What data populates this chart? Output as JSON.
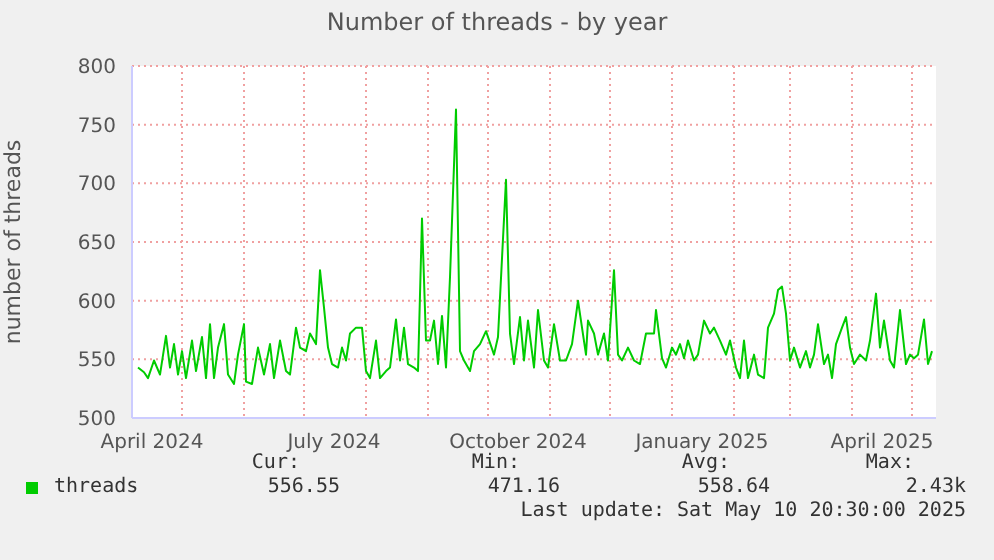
{
  "chart_data": {
    "type": "line",
    "title": "Number of threads - by year",
    "ylabel": "number of threads",
    "x": [
      "2024-04-09",
      "2024-04-12",
      "2024-04-14",
      "2024-04-17",
      "2024-04-20",
      "2024-04-23",
      "2024-04-25",
      "2024-04-27",
      "2024-04-29",
      "2024-05-01",
      "2024-05-03",
      "2024-05-06",
      "2024-05-08",
      "2024-05-11",
      "2024-05-13",
      "2024-05-15",
      "2024-05-17",
      "2024-05-19",
      "2024-05-22",
      "2024-05-24",
      "2024-05-27",
      "2024-05-29",
      "2024-06-01",
      "2024-06-02",
      "2024-06-05",
      "2024-06-08",
      "2024-06-11",
      "2024-06-14",
      "2024-06-16",
      "2024-06-19",
      "2024-06-22",
      "2024-06-24",
      "2024-06-27",
      "2024-06-29",
      "2024-07-02",
      "2024-07-04",
      "2024-07-07",
      "2024-07-09",
      "2024-07-11",
      "2024-07-13",
      "2024-07-15",
      "2024-07-18",
      "2024-07-20",
      "2024-07-22",
      "2024-07-24",
      "2024-07-27",
      "2024-07-30",
      "2024-08-01",
      "2024-08-03",
      "2024-08-06",
      "2024-08-08",
      "2024-08-11",
      "2024-08-13",
      "2024-08-16",
      "2024-08-18",
      "2024-08-20",
      "2024-08-22",
      "2024-08-25",
      "2024-08-27",
      "2024-08-29",
      "2024-08-31",
      "2024-09-02",
      "2024-09-04",
      "2024-09-06",
      "2024-09-08",
      "2024-09-10",
      "2024-09-12",
      "2024-09-15",
      "2024-09-17",
      "2024-09-19",
      "2024-09-22",
      "2024-09-24",
      "2024-09-27",
      "2024-09-30",
      "2024-10-04",
      "2024-10-06",
      "2024-10-10",
      "2024-10-12",
      "2024-10-14",
      "2024-10-17",
      "2024-10-19",
      "2024-10-21",
      "2024-10-24",
      "2024-10-26",
      "2024-10-29",
      "2024-10-31",
      "2024-11-03",
      "2024-11-06",
      "2024-11-09",
      "2024-11-12",
      "2024-11-15",
      "2024-11-17",
      "2024-11-19",
      "2024-11-20",
      "2024-11-23",
      "2024-11-25",
      "2024-11-28",
      "2024-11-30",
      "2024-12-03",
      "2024-12-05",
      "2024-12-07",
      "2024-12-10",
      "2024-12-13",
      "2024-12-16",
      "2024-12-19",
      "2024-12-21",
      "2024-12-23",
      "2024-12-24",
      "2024-12-27",
      "2024-12-29",
      "2025-01-01",
      "2025-01-03",
      "2025-01-05",
      "2025-01-07",
      "2025-01-09",
      "2025-01-12",
      "2025-01-14",
      "2025-01-17",
      "2025-01-20",
      "2025-01-22",
      "2025-01-25",
      "2025-01-28",
      "2025-01-30",
      "2025-02-02",
      "2025-02-04",
      "2025-02-06",
      "2025-02-08",
      "2025-02-11",
      "2025-02-13",
      "2025-02-16",
      "2025-02-18",
      "2025-02-21",
      "2025-02-23",
      "2025-02-25",
      "2025-02-27",
      "2025-03-01",
      "2025-03-03",
      "2025-03-06",
      "2025-03-09",
      "2025-03-11",
      "2025-03-13",
      "2025-03-15",
      "2025-03-18",
      "2025-03-20",
      "2025-03-22",
      "2025-03-24",
      "2025-03-27",
      "2025-03-29",
      "2025-03-31",
      "2025-04-02",
      "2025-04-05",
      "2025-04-08",
      "2025-04-10",
      "2025-04-13",
      "2025-04-15",
      "2025-04-17",
      "2025-04-20",
      "2025-04-22",
      "2025-04-25",
      "2025-04-28",
      "2025-04-30",
      "2025-05-02",
      "2025-05-04",
      "2025-05-07",
      "2025-05-09",
      "2025-05-11"
    ],
    "series": [
      {
        "name": "threads",
        "color": "#00cc00",
        "values": [
          543,
          539,
          534,
          549,
          537,
          570,
          543,
          563,
          537,
          557,
          534,
          566,
          540,
          569,
          534,
          580,
          534,
          560,
          580,
          537,
          529,
          554,
          580,
          531,
          529,
          560,
          537,
          563,
          534,
          566,
          540,
          537,
          577,
          560,
          557,
          572,
          563,
          626,
          594,
          560,
          546,
          543,
          560,
          549,
          572,
          577,
          577,
          540,
          534,
          566,
          534,
          540,
          543,
          584,
          549,
          577,
          546,
          543,
          540,
          670,
          566,
          566,
          583,
          546,
          587,
          543,
          620,
          763,
          557,
          549,
          540,
          557,
          563,
          574,
          554,
          569,
          703,
          572,
          546,
          586,
          549,
          583,
          543,
          592,
          549,
          543,
          580,
          549,
          549,
          563,
          600,
          577,
          554,
          583,
          572,
          554,
          572,
          549,
          626,
          554,
          549,
          560,
          549,
          546,
          572,
          572,
          572,
          592,
          551,
          543,
          560,
          554,
          563,
          551,
          566,
          549,
          554,
          583,
          572,
          577,
          566,
          554,
          566,
          543,
          534,
          566,
          534,
          554,
          537,
          534,
          577,
          589,
          609,
          612,
          589,
          549,
          560,
          543,
          557,
          543,
          554,
          580,
          546,
          554,
          534,
          563,
          577,
          586,
          560,
          546,
          554,
          549,
          566,
          606,
          560,
          583,
          549,
          543,
          592,
          546,
          554,
          551,
          554,
          584,
          546,
          557
        ]
      }
    ],
    "xlim": [
      "2024-04-06",
      "2025-05-13"
    ],
    "xticks": [
      {
        "value": "2024-04-16",
        "label": "April 2024"
      },
      {
        "value": "2024-05-01",
        "label": null
      },
      {
        "value": "2024-06-01",
        "label": null
      },
      {
        "value": "2024-07-01",
        "label": null
      },
      {
        "value": "2024-07-16",
        "label": "July 2024"
      },
      {
        "value": "2024-08-01",
        "label": null
      },
      {
        "value": "2024-09-01",
        "label": null
      },
      {
        "value": "2024-10-01",
        "label": null
      },
      {
        "value": "2024-10-16",
        "label": "October 2024"
      },
      {
        "value": "2024-11-01",
        "label": null
      },
      {
        "value": "2024-12-01",
        "label": null
      },
      {
        "value": "2025-01-01",
        "label": null
      },
      {
        "value": "2025-01-16",
        "label": "January 2025"
      },
      {
        "value": "2025-02-01",
        "label": null
      },
      {
        "value": "2025-03-01",
        "label": null
      },
      {
        "value": "2025-04-01",
        "label": null
      },
      {
        "value": "2025-04-16",
        "label": "April 2025"
      },
      {
        "value": "2025-05-01",
        "label": null
      }
    ],
    "ylim": [
      500,
      800
    ],
    "yticks": [
      500,
      550,
      600,
      650,
      700,
      750,
      800
    ],
    "grid": true,
    "legend": "bottom",
    "marker": "none",
    "line_style": "solid",
    "annotations": [
      "Cur:",
      "Min:",
      "Avg:",
      "Max:",
      "556.55",
      "471.16",
      "558.64",
      "2.43k",
      "Last update: Sat May 10 20:30:00 2025"
    ]
  }
}
